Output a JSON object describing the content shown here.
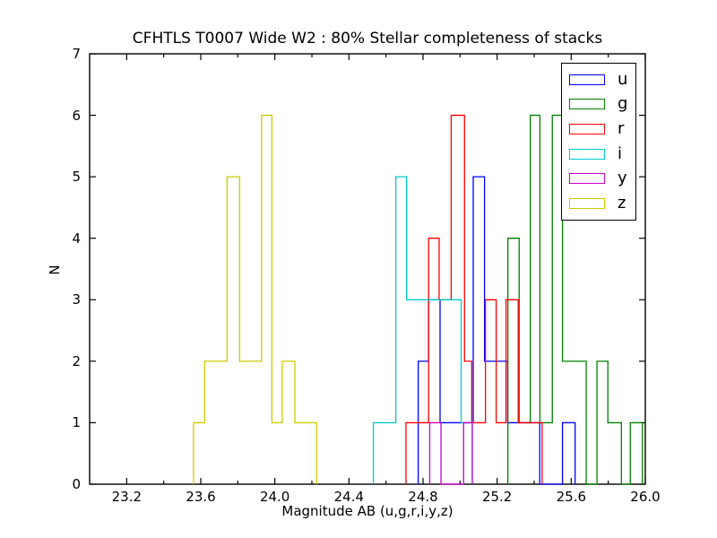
{
  "figure": {
    "background": "#ffffff",
    "frame_color": "#000000"
  },
  "chart_data": {
    "type": "step-histogram",
    "title": "CFHTLS T0007 Wide W2 : 80% Stellar completeness of stacks",
    "xlabel": "Magnitude AB (u,g,r,i,y,z)",
    "ylabel": "N",
    "xlim": [
      23.0,
      26.0
    ],
    "ylim": [
      0,
      7
    ],
    "x_major_ticks": [
      23.2,
      23.6,
      24.0,
      24.4,
      24.8,
      25.2,
      25.6,
      26.0
    ],
    "x_minor_ticks": [
      23.4,
      23.8,
      24.2,
      24.6,
      25.0,
      25.4,
      25.8
    ],
    "y_ticks": [
      0,
      1,
      2,
      3,
      4,
      5,
      6,
      7
    ],
    "grid": false,
    "legend_position": "upper right",
    "series": [
      {
        "name": "u",
        "color": "#0000ff",
        "edges": [
          24.774,
          24.83,
          24.892,
          25.071,
          25.132,
          25.257,
          25.43,
          25.553,
          25.621
        ],
        "counts": [
          2,
          3,
          1,
          5,
          2,
          1,
          0,
          1
        ]
      },
      {
        "name": "g",
        "color": "#008000",
        "edges": [
          25.258,
          25.319,
          25.379,
          25.431,
          25.498,
          25.553,
          25.681,
          25.739,
          25.798,
          25.871,
          25.919,
          25.984
        ],
        "counts": [
          4,
          1,
          6,
          1,
          6,
          2,
          0,
          2,
          1,
          0,
          1
        ]
      },
      {
        "name": "r",
        "color": "#ff0000",
        "edges": [
          24.708,
          24.83,
          24.887,
          24.952,
          25.024,
          25.063,
          25.137,
          25.195,
          25.248,
          25.314,
          25.443
        ],
        "counts": [
          1,
          4,
          3,
          6,
          2,
          1,
          3,
          1,
          3,
          1
        ]
      },
      {
        "name": "i",
        "color": "#00cccc",
        "edges": [
          24.532,
          24.653,
          24.711,
          25.006,
          25.066
        ],
        "counts": [
          1,
          5,
          3,
          1
        ]
      },
      {
        "name": "y",
        "color": "#cc00cc",
        "edges": [
          24.836,
          24.897,
          25.019,
          25.066
        ],
        "counts": [
          1,
          0,
          1
        ]
      },
      {
        "name": "z",
        "color": "#cccc00",
        "edges": [
          23.561,
          23.621,
          23.742,
          23.81,
          23.928,
          23.984,
          24.04,
          24.108,
          24.226
        ],
        "counts": [
          1,
          2,
          5,
          2,
          6,
          1,
          2,
          1
        ]
      }
    ]
  },
  "legend": {
    "entries": [
      {
        "label": "u",
        "color": "#0000ff"
      },
      {
        "label": "g",
        "color": "#008000"
      },
      {
        "label": "r",
        "color": "#ff0000"
      },
      {
        "label": "i",
        "color": "#00cccc"
      },
      {
        "label": "y",
        "color": "#cc00cc"
      },
      {
        "label": "z",
        "color": "#cccc00"
      }
    ]
  }
}
